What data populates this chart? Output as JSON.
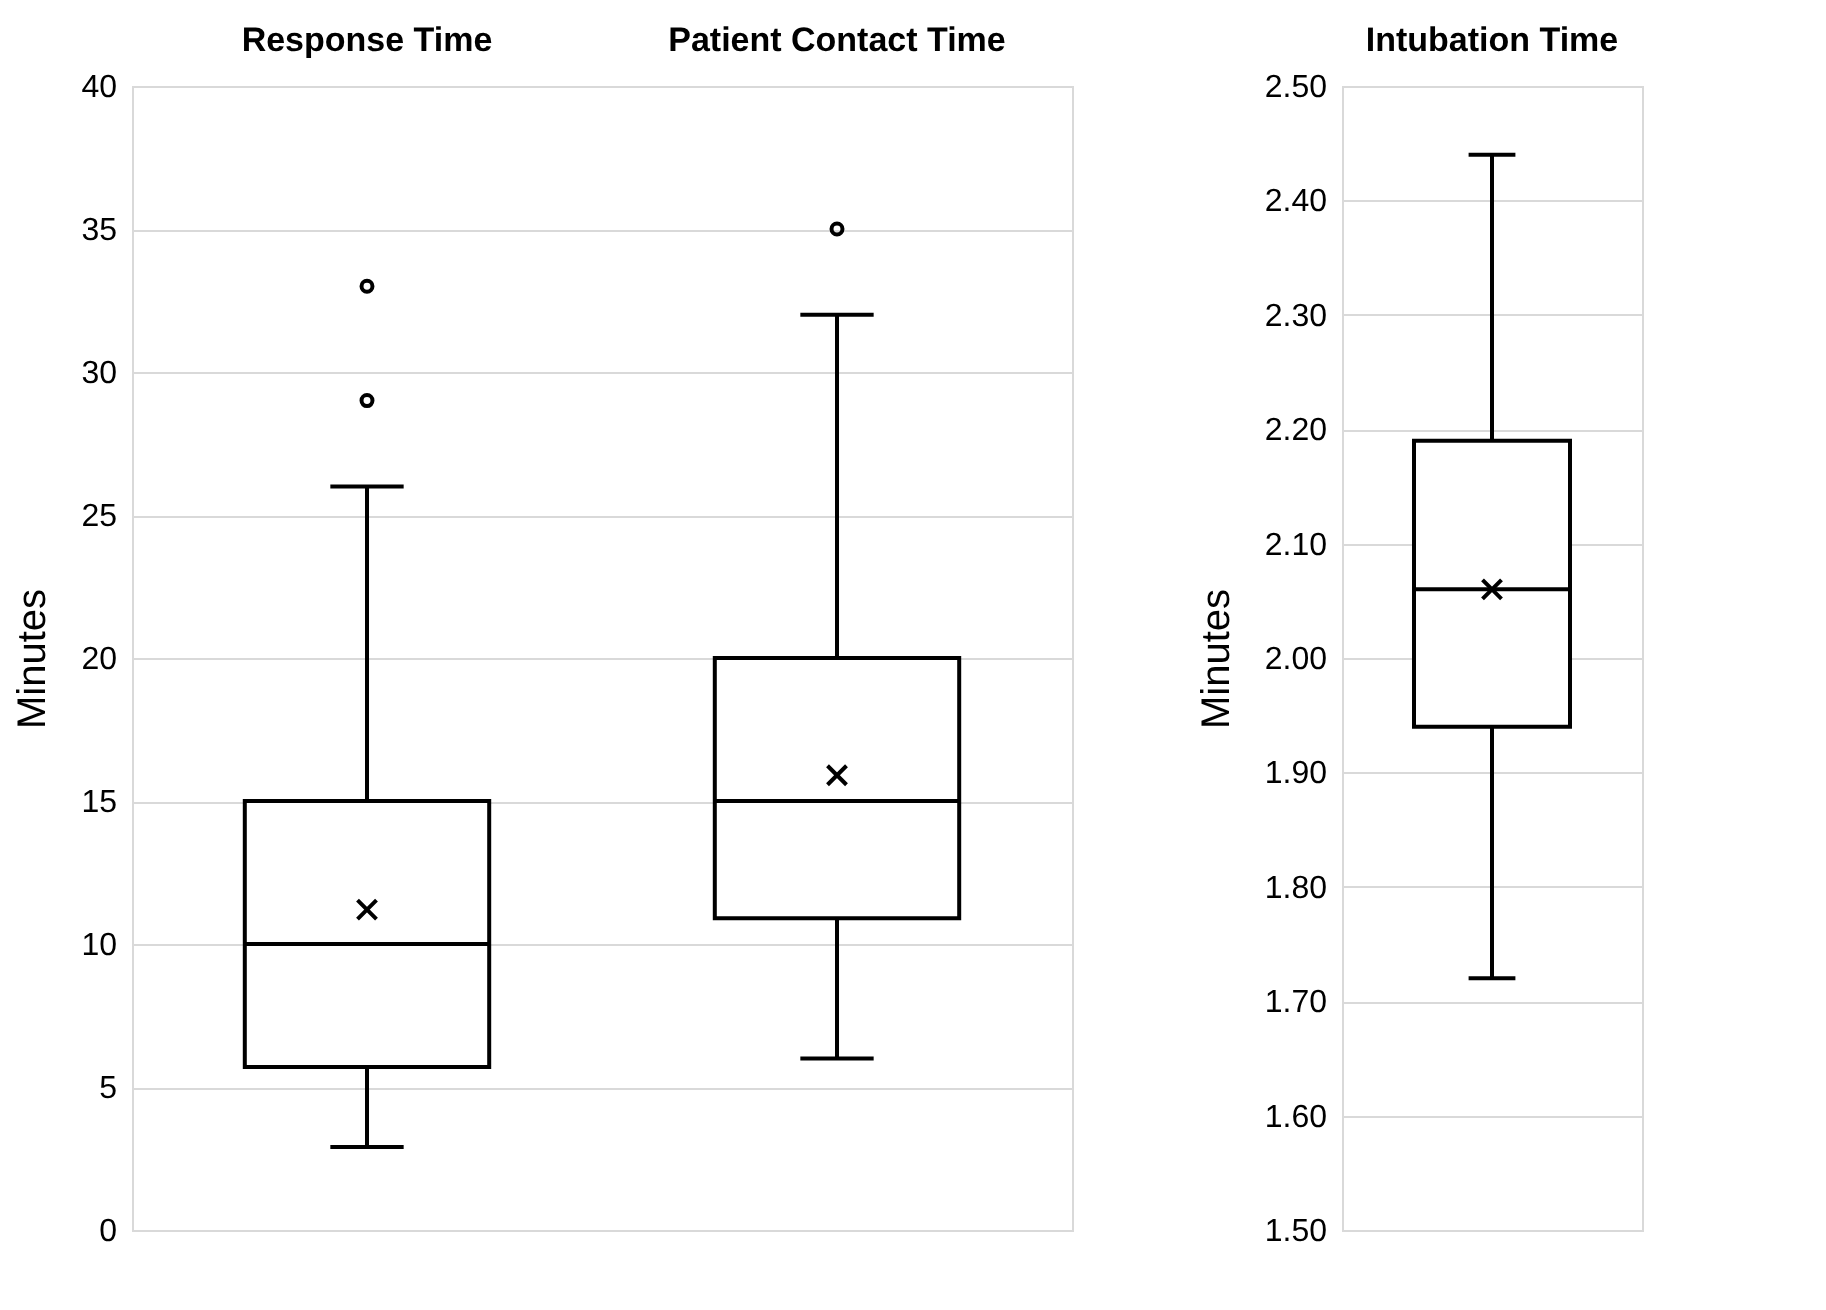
{
  "chart_data": [
    {
      "type": "box",
      "categories": [
        "Response Time",
        "Patient Contact Time"
      ],
      "ylabel": "Minutes",
      "ylim": [
        0,
        40
      ],
      "yticks": [
        0,
        5,
        10,
        15,
        20,
        25,
        30,
        35,
        40
      ],
      "grid": "y",
      "color": "#000000",
      "boxes": [
        {
          "low": 2.9,
          "q1": 5.7,
          "median": 10,
          "q3": 15,
          "high": 26,
          "mean": 11.2,
          "outliers": [
            29,
            33
          ]
        },
        {
          "low": 6,
          "q1": 10.9,
          "median": 15,
          "q3": 20,
          "high": 32,
          "mean": 15.9,
          "outliers": [
            35
          ]
        }
      ]
    },
    {
      "type": "box",
      "categories": [
        "Intubation Time"
      ],
      "ylabel": "Minutes",
      "ylim": [
        1.5,
        2.5
      ],
      "grid": "y",
      "color": "#000000",
      "yticks": [
        {
          "value": 1.5,
          "label": "1.50"
        },
        {
          "value": 1.6,
          "label": "1.60"
        },
        {
          "value": 1.7,
          "label": "1.70"
        },
        {
          "value": 1.8,
          "label": "1.80"
        },
        {
          "value": 1.9,
          "label": "1.90"
        },
        {
          "value": 2.0,
          "label": "2.00"
        },
        {
          "value": 2.1,
          "label": "2.10"
        },
        {
          "value": 2.2,
          "label": "2.20"
        },
        {
          "value": 2.3,
          "label": "2.30"
        },
        {
          "value": 2.4,
          "label": "2.40"
        },
        {
          "value": 2.5,
          "label": "2.50"
        }
      ],
      "boxes": [
        {
          "low": 1.72,
          "q1": 1.94,
          "median": 2.06,
          "q3": 2.19,
          "high": 2.44,
          "mean": 2.06
        }
      ]
    }
  ]
}
